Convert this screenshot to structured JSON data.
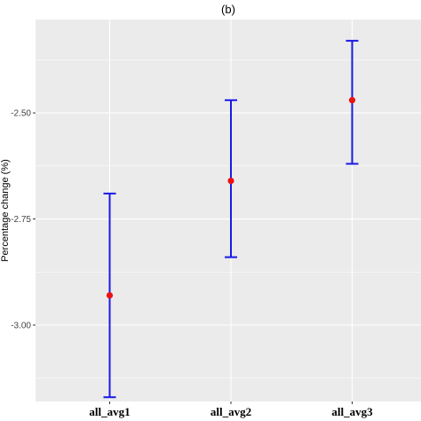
{
  "chart_data": {
    "type": "scatter",
    "title": "(b)",
    "xlabel": "",
    "ylabel": "Percentage change (%)",
    "categories": [
      "all_avg1",
      "all_avg2",
      "all_avg3"
    ],
    "points": [
      {
        "category": "all_avg1",
        "estimate": -2.93,
        "lower": -3.17,
        "upper": -2.69
      },
      {
        "category": "all_avg2",
        "estimate": -2.66,
        "lower": -2.84,
        "upper": -2.47
      },
      {
        "category": "all_avg3",
        "estimate": -2.47,
        "lower": -2.62,
        "upper": -2.33
      }
    ],
    "yticks": [
      -3.0,
      -2.75,
      -2.5
    ],
    "ytick_labels": [
      "-3.00",
      "-2.75",
      "-2.50"
    ],
    "ylim": [
      -3.18,
      -2.28
    ],
    "grid": true,
    "legend": "none",
    "colors": {
      "panel_background": "#ebebeb",
      "gridline": "#ffffff",
      "errorbar": "#1a1ae6",
      "point": "#ee1111"
    }
  }
}
